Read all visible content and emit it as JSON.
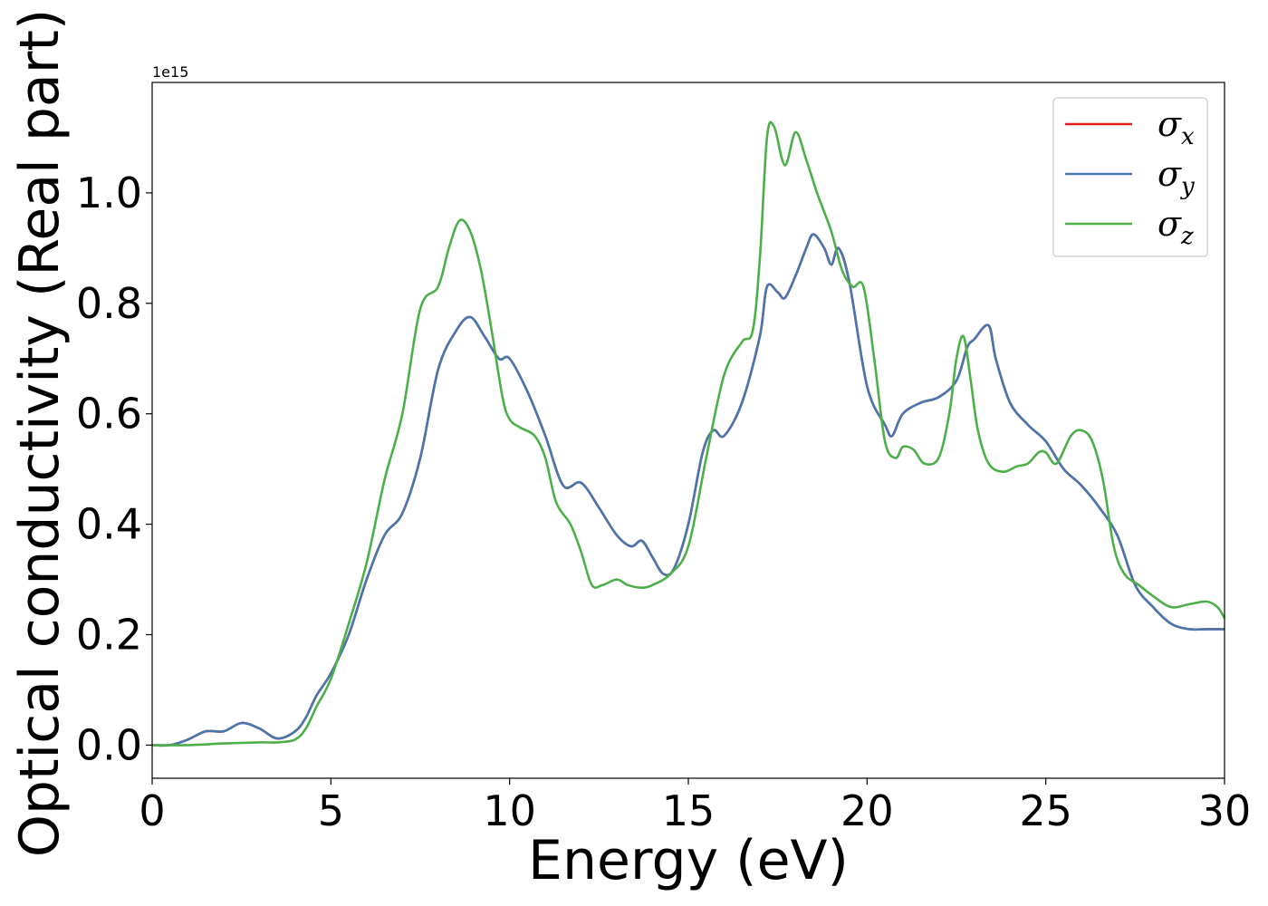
{
  "chart_data": {
    "type": "line",
    "xlabel": "Energy (eV)",
    "ylabel": "Optical conductivity (Real part)",
    "y_offset_text": "1e15",
    "xlim": [
      0,
      30
    ],
    "ylim": [
      -0.06,
      1.2
    ],
    "xticks": [
      0,
      5,
      10,
      15,
      20,
      25,
      30
    ],
    "yticks": [
      0.0,
      0.2,
      0.4,
      0.6,
      0.8,
      1.0
    ],
    "xtick_labels": [
      "0",
      "5",
      "10",
      "15",
      "20",
      "25",
      "30"
    ],
    "ytick_labels": [
      "0.0",
      "0.2",
      "0.4",
      "0.6",
      "0.8",
      "1.0"
    ],
    "grid": false,
    "legend_position": "upper right",
    "series": [
      {
        "name": "σx",
        "symbol": "σ",
        "sub": "x",
        "color": "#e41a1c",
        "x": [
          0,
          0.5,
          1.0,
          1.5,
          2.0,
          2.5,
          3.0,
          3.5,
          4.0,
          4.3,
          4.6,
          5.0,
          5.5,
          6.0,
          6.5,
          7.0,
          7.5,
          8.0,
          8.5,
          8.9,
          9.3,
          9.7,
          10.0,
          10.5,
          11.0,
          11.5,
          12.0,
          12.5,
          13.0,
          13.4,
          13.7,
          14.0,
          14.3,
          14.6,
          15.0,
          15.4,
          15.7,
          16.0,
          16.5,
          17.0,
          17.2,
          17.5,
          17.7,
          18.0,
          18.3,
          18.5,
          18.8,
          19.0,
          19.2,
          19.5,
          20.0,
          20.5,
          20.7,
          21.0,
          21.5,
          22.0,
          22.5,
          22.8,
          23.0,
          23.4,
          23.6,
          24.0,
          24.5,
          25.0,
          25.5,
          26.0,
          26.5,
          27.0,
          27.5,
          28.0,
          28.5,
          29.0,
          29.5,
          30.0
        ],
        "values": [
          0.0,
          0.0,
          0.01,
          0.025,
          0.025,
          0.04,
          0.03,
          0.012,
          0.025,
          0.05,
          0.09,
          0.13,
          0.2,
          0.3,
          0.38,
          0.42,
          0.52,
          0.68,
          0.75,
          0.775,
          0.74,
          0.7,
          0.7,
          0.64,
          0.56,
          0.47,
          0.475,
          0.43,
          0.38,
          0.36,
          0.37,
          0.34,
          0.31,
          0.32,
          0.4,
          0.53,
          0.57,
          0.56,
          0.62,
          0.74,
          0.83,
          0.82,
          0.81,
          0.85,
          0.9,
          0.925,
          0.9,
          0.87,
          0.9,
          0.84,
          0.65,
          0.58,
          0.56,
          0.6,
          0.62,
          0.63,
          0.66,
          0.72,
          0.735,
          0.76,
          0.7,
          0.62,
          0.58,
          0.55,
          0.5,
          0.47,
          0.43,
          0.38,
          0.29,
          0.25,
          0.22,
          0.21,
          0.21,
          0.21
        ]
      },
      {
        "name": "σy",
        "symbol": "σ",
        "sub": "y",
        "color": "#4877ad",
        "x": [
          0,
          0.5,
          1.0,
          1.5,
          2.0,
          2.5,
          3.0,
          3.5,
          4.0,
          4.3,
          4.6,
          5.0,
          5.5,
          6.0,
          6.5,
          7.0,
          7.5,
          8.0,
          8.5,
          8.9,
          9.3,
          9.7,
          10.0,
          10.5,
          11.0,
          11.5,
          12.0,
          12.5,
          13.0,
          13.4,
          13.7,
          14.0,
          14.3,
          14.6,
          15.0,
          15.4,
          15.7,
          16.0,
          16.5,
          17.0,
          17.2,
          17.5,
          17.7,
          18.0,
          18.3,
          18.5,
          18.8,
          19.0,
          19.2,
          19.5,
          20.0,
          20.5,
          20.7,
          21.0,
          21.5,
          22.0,
          22.5,
          22.8,
          23.0,
          23.4,
          23.6,
          24.0,
          24.5,
          25.0,
          25.5,
          26.0,
          26.5,
          27.0,
          27.5,
          28.0,
          28.5,
          29.0,
          29.5,
          30.0
        ],
        "values": [
          0.0,
          0.0,
          0.01,
          0.025,
          0.025,
          0.04,
          0.03,
          0.012,
          0.025,
          0.05,
          0.09,
          0.13,
          0.2,
          0.3,
          0.38,
          0.42,
          0.52,
          0.68,
          0.75,
          0.775,
          0.74,
          0.7,
          0.7,
          0.64,
          0.56,
          0.47,
          0.475,
          0.43,
          0.38,
          0.36,
          0.37,
          0.34,
          0.31,
          0.32,
          0.4,
          0.53,
          0.57,
          0.56,
          0.62,
          0.74,
          0.83,
          0.82,
          0.81,
          0.85,
          0.9,
          0.925,
          0.9,
          0.87,
          0.9,
          0.84,
          0.65,
          0.58,
          0.56,
          0.6,
          0.62,
          0.63,
          0.66,
          0.72,
          0.735,
          0.76,
          0.7,
          0.62,
          0.58,
          0.55,
          0.5,
          0.47,
          0.43,
          0.38,
          0.29,
          0.25,
          0.22,
          0.21,
          0.21,
          0.21
        ]
      },
      {
        "name": "σz",
        "symbol": "σ",
        "sub": "z",
        "color": "#4daf4a",
        "x": [
          0,
          1.0,
          2.0,
          3.0,
          3.5,
          4.0,
          4.3,
          4.6,
          5.0,
          5.5,
          6.0,
          6.5,
          7.0,
          7.5,
          8.0,
          8.3,
          8.6,
          8.9,
          9.2,
          9.5,
          9.8,
          10.0,
          10.3,
          10.7,
          11.0,
          11.3,
          11.7,
          12.0,
          12.3,
          12.6,
          13.0,
          13.3,
          13.7,
          14.0,
          14.5,
          15.0,
          15.5,
          16.0,
          16.5,
          16.8,
          17.0,
          17.2,
          17.4,
          17.7,
          18.0,
          18.3,
          18.6,
          19.0,
          19.3,
          19.6,
          19.9,
          20.2,
          20.5,
          20.8,
          21.0,
          21.3,
          21.6,
          22.0,
          22.3,
          22.5,
          22.7,
          22.9,
          23.1,
          23.4,
          23.8,
          24.2,
          24.5,
          24.8,
          25.0,
          25.3,
          25.7,
          26.0,
          26.3,
          26.6,
          26.9,
          27.2,
          27.6,
          28.0,
          28.5,
          29.0,
          29.5,
          29.8,
          30.0
        ],
        "values": [
          0.0,
          0.0,
          0.003,
          0.005,
          0.005,
          0.01,
          0.03,
          0.07,
          0.12,
          0.22,
          0.33,
          0.48,
          0.6,
          0.79,
          0.83,
          0.9,
          0.95,
          0.93,
          0.86,
          0.75,
          0.63,
          0.59,
          0.575,
          0.56,
          0.52,
          0.44,
          0.4,
          0.35,
          0.29,
          0.29,
          0.3,
          0.29,
          0.285,
          0.29,
          0.31,
          0.36,
          0.52,
          0.67,
          0.73,
          0.75,
          0.88,
          1.1,
          1.12,
          1.05,
          1.11,
          1.06,
          1.0,
          0.93,
          0.86,
          0.83,
          0.83,
          0.7,
          0.55,
          0.52,
          0.54,
          0.535,
          0.51,
          0.52,
          0.6,
          0.7,
          0.74,
          0.66,
          0.57,
          0.51,
          0.495,
          0.505,
          0.51,
          0.53,
          0.53,
          0.51,
          0.56,
          0.57,
          0.55,
          0.48,
          0.36,
          0.31,
          0.29,
          0.27,
          0.25,
          0.255,
          0.26,
          0.25,
          0.23
        ]
      }
    ]
  }
}
